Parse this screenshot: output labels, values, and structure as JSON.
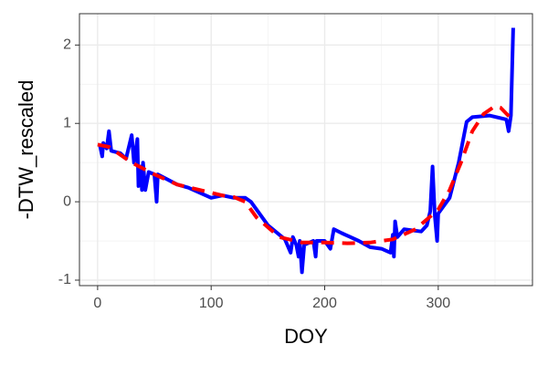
{
  "chart_data": {
    "type": "line",
    "x_label": "DOY",
    "y_label": "-DTW_rescaled",
    "xlim": [
      -16,
      383
    ],
    "ylim": [
      -1.07,
      2.4
    ],
    "xticks": [
      0,
      100,
      200,
      300
    ],
    "yticks": [
      -1,
      0,
      1,
      2
    ],
    "xminor": [
      50,
      150,
      250,
      350
    ],
    "yminor": [
      -0.5,
      0.5,
      1.5
    ],
    "grid": true,
    "series": [
      {
        "color": "#0000ff",
        "dash": false,
        "x": [
          2,
          4,
          5,
          8,
          10,
          12,
          20,
          25,
          30,
          32,
          35,
          36,
          38,
          39,
          40,
          42,
          45,
          50,
          52,
          53,
          70,
          80,
          100,
          110,
          120,
          130,
          135,
          150,
          165,
          170,
          172,
          175,
          177,
          178,
          180,
          182,
          190,
          192,
          193,
          200,
          205,
          208,
          215,
          230,
          240,
          250,
          258,
          260,
          261,
          262,
          264,
          270,
          285,
          290,
          293,
          295,
          297,
          299,
          300,
          310,
          318,
          325,
          330,
          345,
          360,
          362,
          364,
          366
        ],
        "values": [
          0.72,
          0.58,
          0.75,
          0.68,
          0.9,
          0.65,
          0.62,
          0.55,
          0.85,
          0.5,
          0.8,
          0.2,
          0.45,
          0.15,
          0.5,
          0.15,
          0.38,
          0.35,
          0.0,
          0.35,
          0.22,
          0.18,
          0.05,
          0.08,
          0.05,
          0.05,
          0.0,
          -0.3,
          -0.48,
          -0.65,
          -0.45,
          -0.55,
          -0.7,
          -0.5,
          -0.9,
          -0.55,
          -0.5,
          -0.7,
          -0.5,
          -0.5,
          -0.6,
          -0.35,
          -0.4,
          -0.5,
          -0.58,
          -0.6,
          -0.65,
          -0.42,
          -0.7,
          -0.25,
          -0.45,
          -0.35,
          -0.38,
          -0.3,
          -0.12,
          0.45,
          -0.18,
          -0.5,
          -0.15,
          0.05,
          0.5,
          1.02,
          1.08,
          1.1,
          1.05,
          0.9,
          1.1,
          2.22
        ]
      },
      {
        "color": "#ff0000",
        "dash": true,
        "x": [
          0,
          10,
          30,
          50,
          70,
          90,
          110,
          120,
          130,
          140,
          160,
          180,
          200,
          220,
          240,
          260,
          280,
          300,
          310,
          320,
          330,
          340,
          350,
          355,
          365
        ],
        "values": [
          0.73,
          0.7,
          0.5,
          0.35,
          0.22,
          0.15,
          0.08,
          0.06,
          0.0,
          -0.2,
          -0.45,
          -0.52,
          -0.52,
          -0.53,
          -0.52,
          -0.48,
          -0.35,
          -0.1,
          0.15,
          0.5,
          0.9,
          1.12,
          1.22,
          1.2,
          1.05
        ]
      }
    ]
  }
}
